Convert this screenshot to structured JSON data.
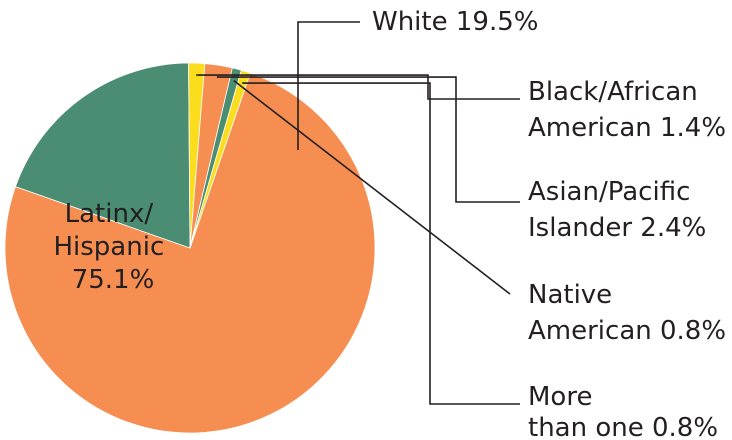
{
  "chart_data": {
    "type": "pie",
    "title": "",
    "colors": {
      "latinx": "#f68d51",
      "white": "#4a8d72",
      "black": "#fbdd1d",
      "asian": "#f68d51",
      "native": "#4a8d72",
      "multi": "#fbdd1d"
    },
    "slices": [
      {
        "key": "latinx",
        "value": 75.1,
        "label_lines": [
          "Latinx/",
          "Hispanic",
          "75.1%"
        ]
      },
      {
        "key": "white",
        "value": 19.5,
        "label_lines": [
          "White 19.5%"
        ]
      },
      {
        "key": "black",
        "value": 1.4,
        "label_lines": [
          "Black/African",
          "American  1.4%"
        ]
      },
      {
        "key": "asian",
        "value": 2.4,
        "label_lines": [
          "Asian/Pacific",
          "Islander 2.4%"
        ]
      },
      {
        "key": "native",
        "value": 0.8,
        "label_lines": [
          "Native",
          "American  0.8%"
        ]
      },
      {
        "key": "multi",
        "value": 0.8,
        "label_lines": [
          "More",
          "than one  0.8%"
        ]
      }
    ]
  }
}
